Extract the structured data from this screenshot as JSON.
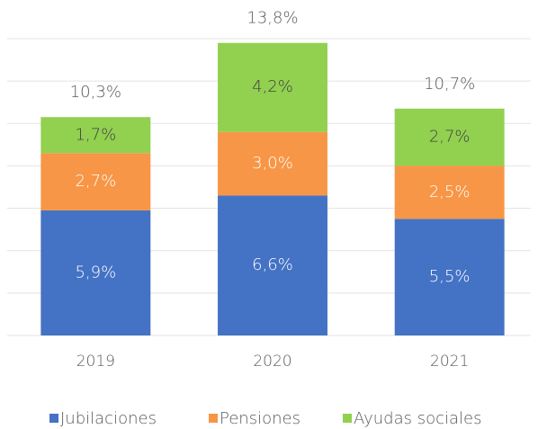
{
  "chart_data": {
    "type": "stacked_bar",
    "categories": [
      "2019",
      "2020",
      "2021"
    ],
    "series": [
      {
        "name": "Jubilaciones",
        "color": "#4472c4",
        "values": [
          5.9,
          6.6,
          5.5
        ],
        "value_labels": [
          "5,9%",
          "6,6%",
          "5,5%"
        ]
      },
      {
        "name": "Pensiones",
        "color": "#f79646",
        "values": [
          2.7,
          3.0,
          2.5
        ],
        "value_labels": [
          "2,7%",
          "3,0%",
          "2,5%"
        ]
      },
      {
        "name": "Ayudas sociales",
        "color": "#92d050",
        "values": [
          1.7,
          4.2,
          2.7
        ],
        "value_labels": [
          "1,7%",
          "4,2%",
          "2,7%"
        ]
      }
    ],
    "totals": {
      "values": [
        10.3,
        13.8,
        10.7
      ],
      "value_labels": [
        "10,3%",
        "13,8%",
        "10,7%"
      ]
    },
    "ylim": [
      0,
      14
    ],
    "yticks": [
      0,
      2,
      4,
      6,
      8,
      10,
      12,
      14
    ],
    "grid": true,
    "legend": "bottom"
  }
}
